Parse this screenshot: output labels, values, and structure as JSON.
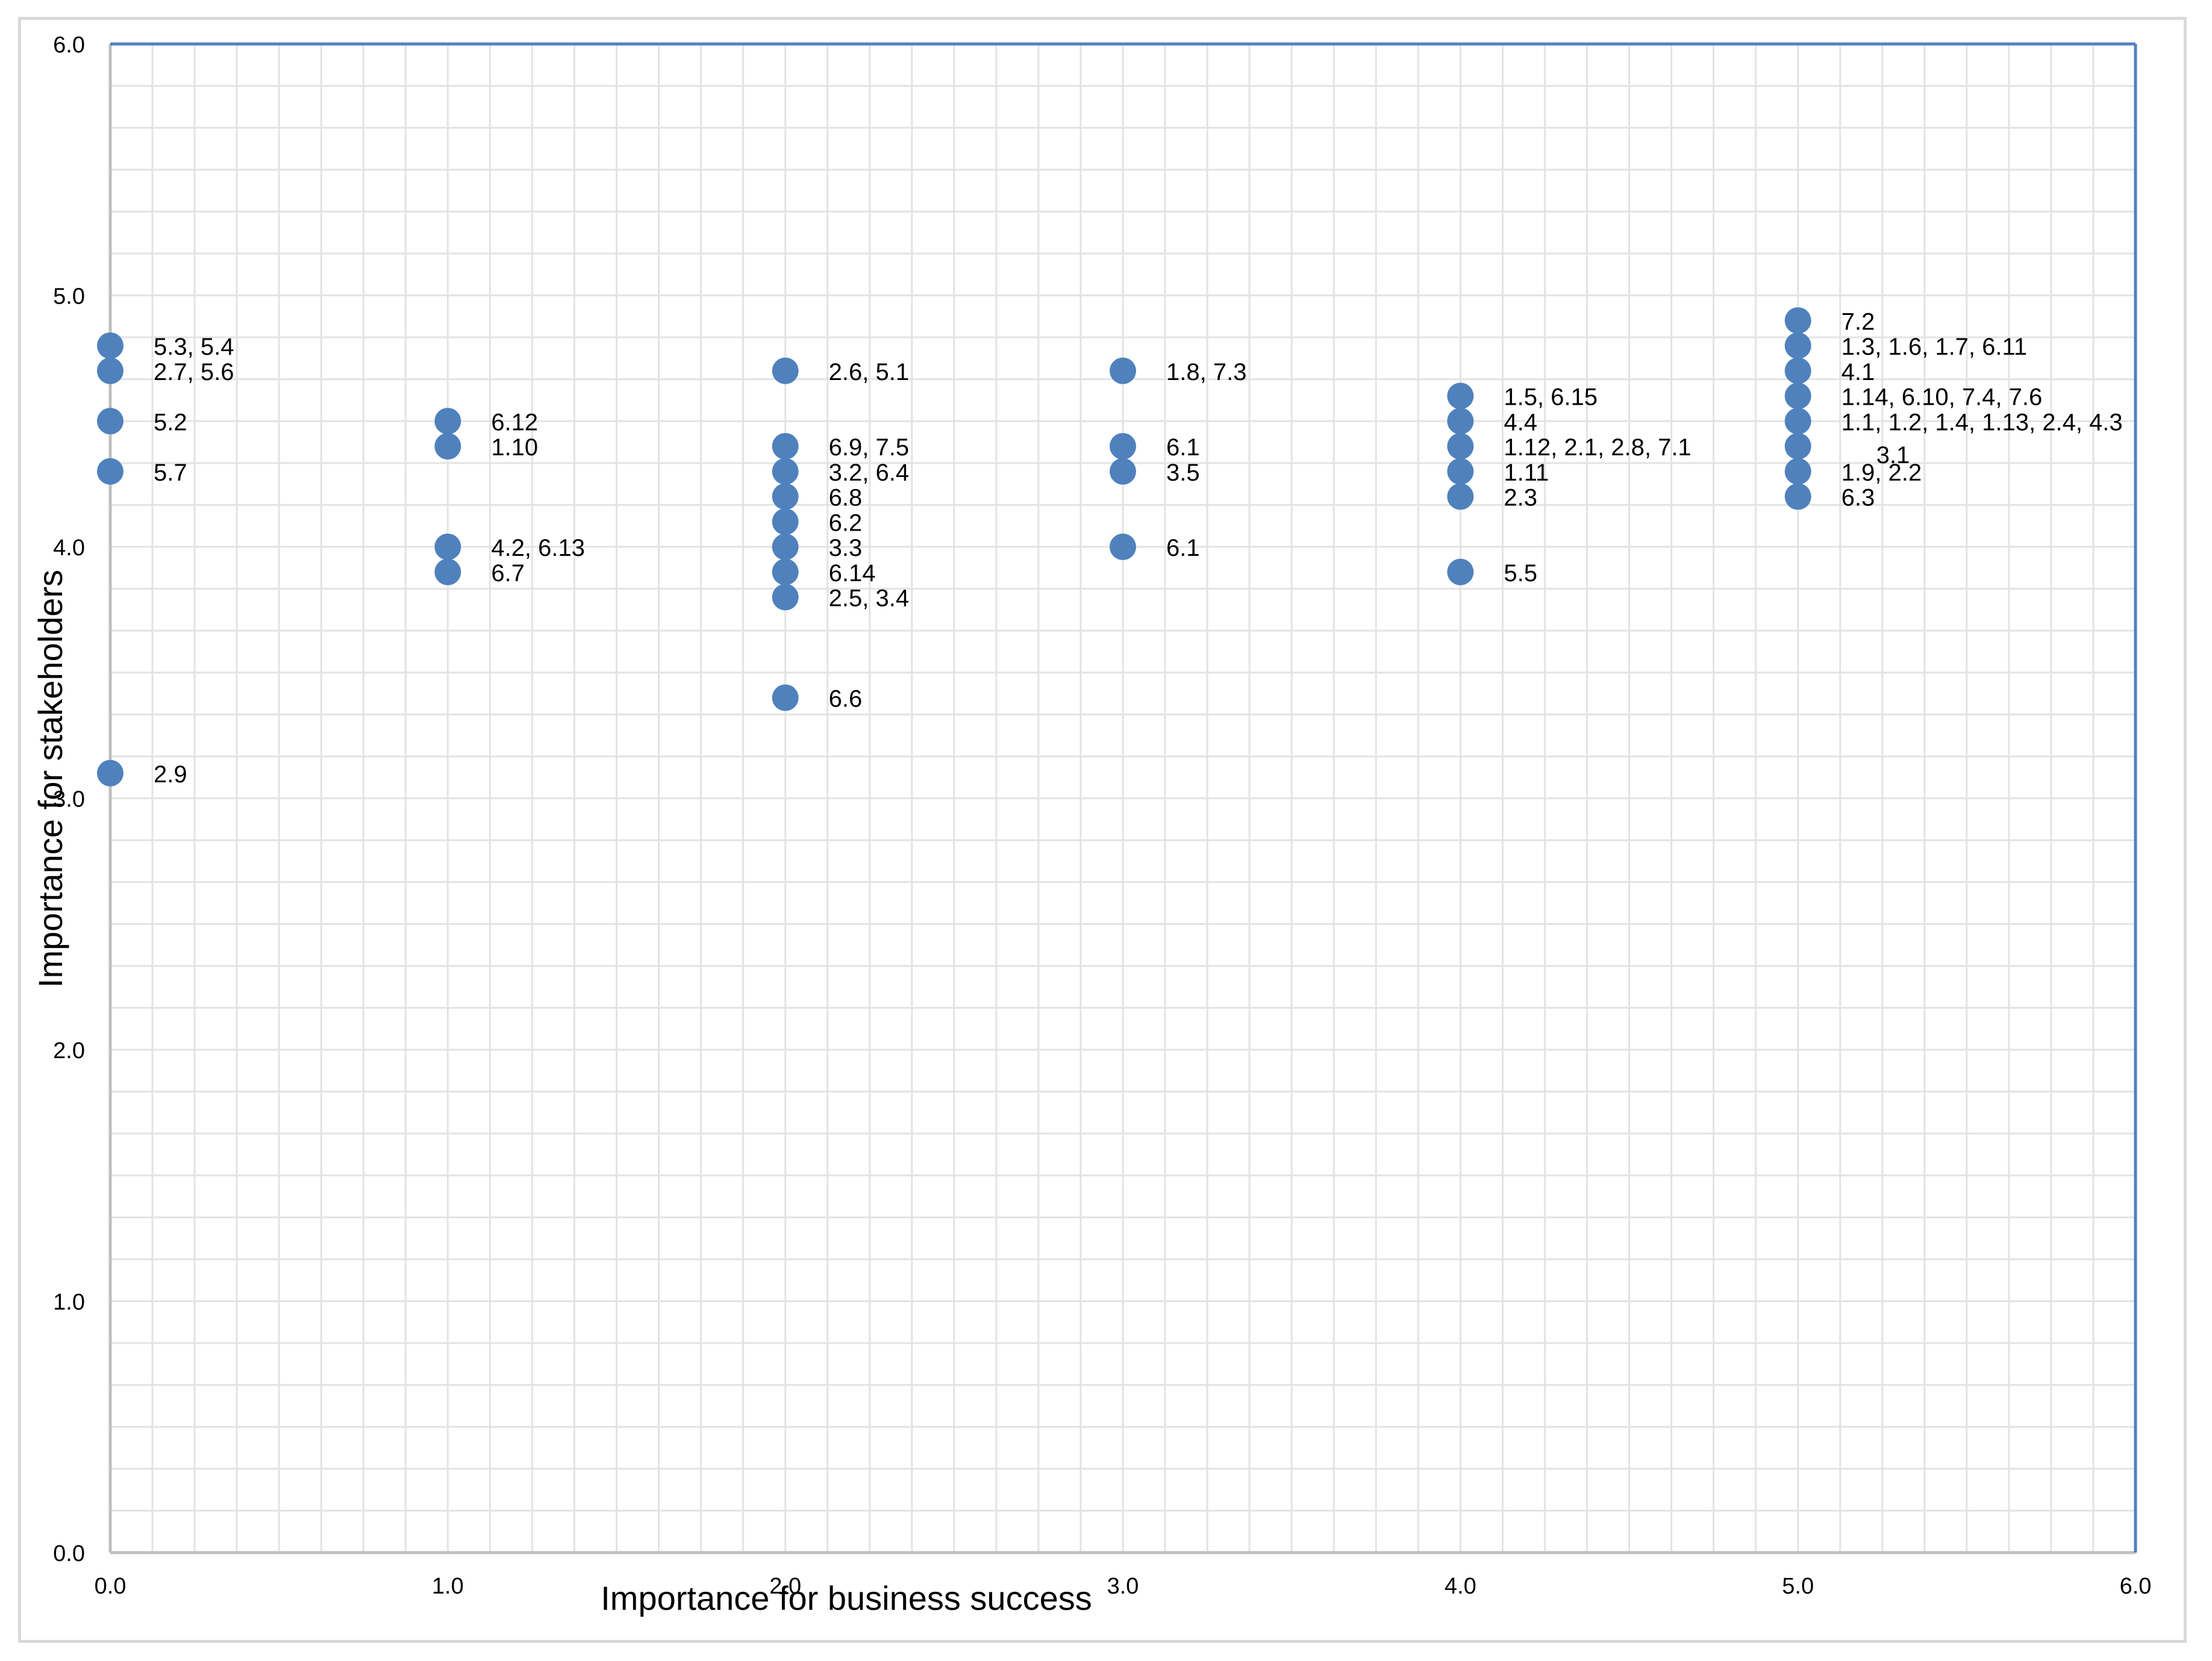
{
  "chart_data": {
    "type": "scatter",
    "title": "",
    "xlabel": "Importance for business success",
    "ylabel": "Importance for stakeholders",
    "xlim": [
      0,
      6
    ],
    "ylim": [
      0,
      6
    ],
    "x_ticks": [
      "0.0",
      "1.0",
      "2.0",
      "3.0",
      "4.0",
      "5.0",
      "6.0"
    ],
    "y_ticks": [
      "0.0",
      "1.0",
      "2.0",
      "3.0",
      "4.0",
      "5.0",
      "6.0"
    ],
    "grid": true,
    "legend": "none",
    "marker_color": "#4f81bd",
    "points": [
      {
        "x": 0.0,
        "y": 4.8,
        "label": "5.3, 5.4"
      },
      {
        "x": 0.0,
        "y": 4.7,
        "label": "2.7, 5.6"
      },
      {
        "x": 0.0,
        "y": 4.5,
        "label": "5.2"
      },
      {
        "x": 0.0,
        "y": 4.3,
        "label": "5.7"
      },
      {
        "x": 0.0,
        "y": 3.1,
        "label": "2.9"
      },
      {
        "x": 1.0,
        "y": 4.5,
        "label": "6.12"
      },
      {
        "x": 1.0,
        "y": 4.4,
        "label": "1.10"
      },
      {
        "x": 1.0,
        "y": 4.0,
        "label": "4.2, 6.13"
      },
      {
        "x": 1.0,
        "y": 3.9,
        "label": "6.7"
      },
      {
        "x": 2.0,
        "y": 4.7,
        "label": "2.6, 5.1"
      },
      {
        "x": 2.0,
        "y": 4.4,
        "label": "6.9, 7.5"
      },
      {
        "x": 2.0,
        "y": 4.3,
        "label": "3.2, 6.4"
      },
      {
        "x": 2.0,
        "y": 4.2,
        "label": "6.8"
      },
      {
        "x": 2.0,
        "y": 4.1,
        "label": "6.2"
      },
      {
        "x": 2.0,
        "y": 4.0,
        "label": "3.3"
      },
      {
        "x": 2.0,
        "y": 3.9,
        "label": "6.14"
      },
      {
        "x": 2.0,
        "y": 3.8,
        "label": "2.5, 3.4"
      },
      {
        "x": 2.0,
        "y": 3.4,
        "label": "6.6"
      },
      {
        "x": 3.0,
        "y": 4.7,
        "label": "1.8, 7.3"
      },
      {
        "x": 3.0,
        "y": 4.4,
        "label": "6.1"
      },
      {
        "x": 3.0,
        "y": 4.3,
        "label": "3.5"
      },
      {
        "x": 3.0,
        "y": 4.0,
        "label": "6.1"
      },
      {
        "x": 4.0,
        "y": 4.6,
        "label": "1.5, 6.15"
      },
      {
        "x": 4.0,
        "y": 4.5,
        "label": "4.4"
      },
      {
        "x": 4.0,
        "y": 4.4,
        "label": "1.12, 2.1, 2.8, 7.1"
      },
      {
        "x": 4.0,
        "y": 4.3,
        "label": "1.11"
      },
      {
        "x": 4.0,
        "y": 4.2,
        "label": "2.3"
      },
      {
        "x": 4.0,
        "y": 3.9,
        "label": "5.5"
      },
      {
        "x": 5.0,
        "y": 4.9,
        "label": "7.2"
      },
      {
        "x": 5.0,
        "y": 4.8,
        "label": "1.3, 1.6, 1.7, 6.11"
      },
      {
        "x": 5.0,
        "y": 4.7,
        "label": "4.1"
      },
      {
        "x": 5.0,
        "y": 4.6,
        "label": "1.14, 6.10, 7.4, 7.6"
      },
      {
        "x": 5.0,
        "y": 4.5,
        "label": "1.1, 1.2, 1.4, 1.13, 2.4, 4.3"
      },
      {
        "x": 5.0,
        "y": 4.4,
        "label": "3.1"
      },
      {
        "x": 5.0,
        "y": 4.3,
        "label": "1.9, 2.2"
      },
      {
        "x": 5.0,
        "y": 4.2,
        "label": "6.3"
      }
    ]
  }
}
